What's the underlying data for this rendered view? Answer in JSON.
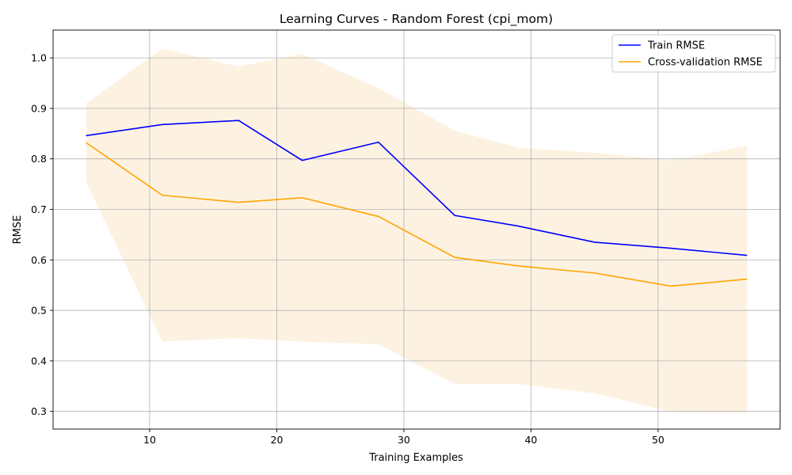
{
  "chart_data": {
    "type": "line",
    "title": "Learning Curves - Random Forest (cpi_mom)",
    "xlabel": "Training Examples",
    "ylabel": "RMSE",
    "xlim": [
      2.4,
      59.6
    ],
    "ylim": [
      0.265,
      1.055
    ],
    "xticks": [
      10,
      20,
      30,
      40,
      50
    ],
    "yticks": [
      0.3,
      0.4,
      0.5,
      0.6,
      0.7,
      0.8,
      0.9,
      1.0
    ],
    "ytick_labels": [
      "0.3",
      "0.4",
      "0.5",
      "0.6",
      "0.7",
      "0.8",
      "0.9",
      "1.0"
    ],
    "grid": true,
    "legend_position": "top-right",
    "x": [
      5,
      11,
      17,
      22,
      28,
      34,
      39,
      45,
      51,
      57
    ],
    "series": [
      {
        "name": "Train RMSE",
        "color": "#0000ff",
        "values": [
          0.846,
          0.868,
          0.876,
          0.797,
          0.833,
          0.688,
          0.667,
          0.635,
          0.623,
          0.609
        ]
      },
      {
        "name": "Cross-validation RMSE",
        "color": "#ffa500",
        "values": [
          0.832,
          0.728,
          0.714,
          0.723,
          0.686,
          0.605,
          0.588,
          0.574,
          0.548,
          0.562
        ],
        "band_upper": [
          0.91,
          1.018,
          0.983,
          1.008,
          0.94,
          0.856,
          0.822,
          0.812,
          0.797,
          0.826
        ],
        "band_lower": [
          0.754,
          0.438,
          0.445,
          0.438,
          0.433,
          0.354,
          0.354,
          0.336,
          0.299,
          0.298
        ],
        "band_color": "#fdf2e2"
      }
    ]
  }
}
